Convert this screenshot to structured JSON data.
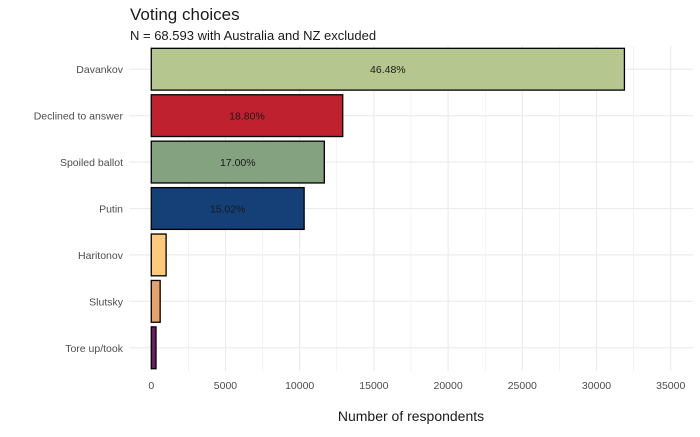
{
  "chart_data": {
    "type": "bar",
    "orientation": "horizontal",
    "title": "Voting choices",
    "subtitle": "N = 68.593 with Australia and NZ excluded",
    "xlabel": "Number of respondents",
    "ylabel": "",
    "xlim": [
      -1500,
      36500
    ],
    "x_ticks": [
      0,
      5000,
      10000,
      15000,
      20000,
      25000,
      30000,
      35000
    ],
    "x_tick_labels": [
      "0",
      "5000",
      "10000",
      "15000",
      "20000",
      "25000",
      "30000",
      "35000"
    ],
    "grid": true,
    "legend": "none",
    "categories": [
      "Davankov",
      "Declined to answer",
      "Spoiled ballot",
      "Putin",
      "Haritonov",
      "Slutsky",
      "Tore up/took"
    ],
    "values": [
      31880,
      12900,
      11660,
      10300,
      1000,
      600,
      320
    ],
    "data_labels": [
      "46.48%",
      "18.80%",
      "17.00%",
      "15.02%",
      "",
      "",
      ""
    ],
    "colors": [
      "#b5c78e",
      "#c0212f",
      "#84a180",
      "#143f77",
      "#fdc97b",
      "#e5a26c",
      "#6b2063"
    ],
    "bar_outline": "#000000",
    "grid_color": "#ebebeb",
    "text_color": "#4d4d4d",
    "title_color": "#1a1a1a"
  }
}
